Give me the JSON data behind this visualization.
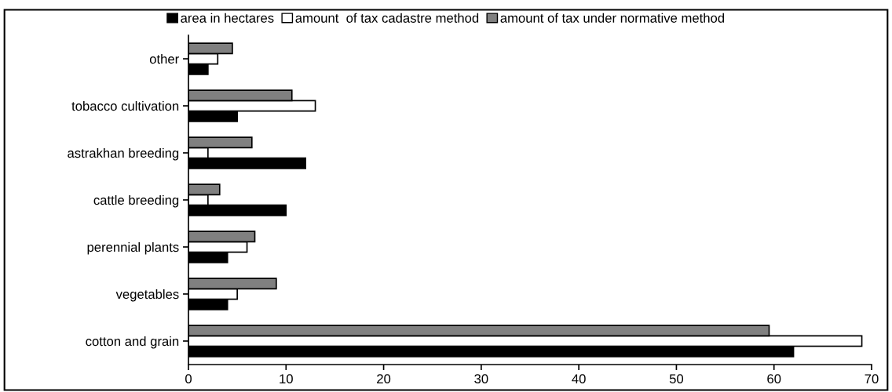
{
  "chart_data": {
    "type": "bar",
    "orientation": "horizontal",
    "categories": [
      "other",
      "tobacco cultivation",
      "astrakhan breeding",
      "cattle breeding",
      "perennial plants",
      "vegetables",
      "cotton and grain"
    ],
    "series": [
      {
        "name": "area in hectares",
        "color": "#000000",
        "values": [
          2,
          5,
          12,
          10,
          4,
          4,
          62
        ]
      },
      {
        "name": "amount  of tax cadastre method",
        "color": "#ffffff",
        "values": [
          3,
          13,
          2,
          2,
          6,
          5,
          69
        ]
      },
      {
        "name": "amount of tax under normative method",
        "color": "#808080",
        "values": [
          4.5,
          10.6,
          6.5,
          3.2,
          6.8,
          9,
          59.5
        ]
      }
    ],
    "xlim": [
      0,
      70
    ],
    "xticks": [
      0,
      10,
      20,
      30,
      40,
      50,
      60,
      70
    ],
    "grid": false,
    "legend": "top"
  }
}
